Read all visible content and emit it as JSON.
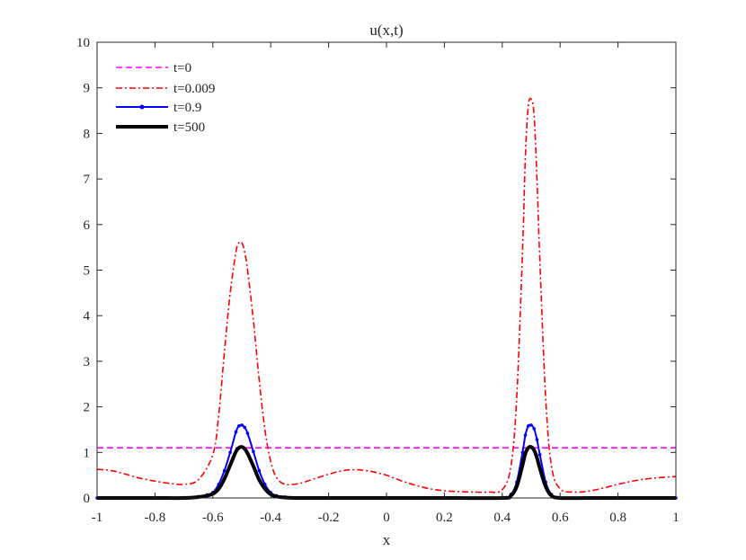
{
  "chart_data": {
    "type": "line",
    "title": "u(x,t)",
    "xlabel": "x",
    "ylabel": "",
    "xlim": [
      -1,
      1
    ],
    "ylim": [
      0,
      10
    ],
    "xticks": [
      -1,
      -0.8,
      -0.6,
      -0.4,
      -0.2,
      0,
      0.2,
      0.4,
      0.6,
      0.8,
      1
    ],
    "xtick_labels": [
      "-1",
      "-0.8",
      "-0.6",
      "-0.4",
      "-0.2",
      "0",
      "0.2",
      "0.4",
      "0.6",
      "0.8",
      "1"
    ],
    "yticks": [
      0,
      1,
      2,
      3,
      4,
      5,
      6,
      7,
      8,
      9,
      10
    ],
    "ytick_labels": [
      "0",
      "1",
      "2",
      "3",
      "4",
      "5",
      "6",
      "7",
      "8",
      "9",
      "10"
    ],
    "grid": false,
    "legend_position": "top-left",
    "series": [
      {
        "name": "t=0",
        "color": "#ff00ff",
        "style": "dashed",
        "x": [
          -1,
          1
        ],
        "y": [
          1.1,
          1.1
        ]
      },
      {
        "name": "t=0.009",
        "color": "#ff0000",
        "style": "dashdot",
        "x": [
          -1.0,
          -0.95,
          -0.9,
          -0.85,
          -0.8,
          -0.75,
          -0.7,
          -0.65,
          -0.6,
          -0.58,
          -0.56,
          -0.54,
          -0.52,
          -0.51,
          -0.5,
          -0.49,
          -0.48,
          -0.46,
          -0.44,
          -0.42,
          -0.4,
          -0.38,
          -0.35,
          -0.3,
          -0.25,
          -0.2,
          -0.15,
          -0.1,
          -0.05,
          -0.03,
          0.0,
          0.05,
          0.1,
          0.15,
          0.2,
          0.25,
          0.3,
          0.35,
          0.4,
          0.43,
          0.45,
          0.47,
          0.48,
          0.49,
          0.5,
          0.51,
          0.52,
          0.53,
          0.55,
          0.57,
          0.6,
          0.65,
          0.7,
          0.75,
          0.8,
          0.85,
          0.9,
          0.95,
          1.0
        ],
        "y": [
          0.63,
          0.6,
          0.52,
          0.43,
          0.37,
          0.32,
          0.3,
          0.4,
          0.95,
          1.8,
          3.2,
          4.5,
          5.4,
          5.6,
          5.6,
          5.4,
          5.0,
          3.9,
          2.6,
          1.5,
          0.8,
          0.45,
          0.3,
          0.32,
          0.42,
          0.52,
          0.6,
          0.62,
          0.58,
          0.55,
          0.5,
          0.38,
          0.28,
          0.2,
          0.16,
          0.14,
          0.13,
          0.13,
          0.18,
          0.7,
          2.2,
          5.4,
          7.5,
          8.6,
          8.75,
          8.4,
          7.0,
          5.2,
          2.2,
          0.7,
          0.2,
          0.13,
          0.15,
          0.22,
          0.3,
          0.37,
          0.42,
          0.45,
          0.47
        ]
      },
      {
        "name": "t=0.9",
        "color": "#0000ff",
        "style": "solid-dot",
        "x": [
          -1.0,
          -0.9,
          -0.8,
          -0.7,
          -0.65,
          -0.62,
          -0.6,
          -0.58,
          -0.56,
          -0.54,
          -0.52,
          -0.51,
          -0.5,
          -0.49,
          -0.48,
          -0.46,
          -0.44,
          -0.42,
          -0.4,
          -0.38,
          -0.35,
          -0.3,
          -0.2,
          0.0,
          0.2,
          0.4,
          0.43,
          0.45,
          0.47,
          0.48,
          0.49,
          0.5,
          0.51,
          0.52,
          0.53,
          0.55,
          0.57,
          0.6,
          0.7,
          0.8,
          1.0
        ],
        "y": [
          0.0,
          0.0,
          0.0,
          0.01,
          0.03,
          0.07,
          0.12,
          0.3,
          0.6,
          1.0,
          1.45,
          1.58,
          1.6,
          1.55,
          1.42,
          1.02,
          0.6,
          0.3,
          0.12,
          0.05,
          0.02,
          0.0,
          0.0,
          0.0,
          0.0,
          0.01,
          0.08,
          0.35,
          1.0,
          1.38,
          1.58,
          1.6,
          1.52,
          1.28,
          0.95,
          0.35,
          0.08,
          0.01,
          0.0,
          0.0,
          0.0
        ]
      },
      {
        "name": "t=500",
        "color": "#000000",
        "style": "solid-thick",
        "x": [
          -1.0,
          -0.9,
          -0.8,
          -0.7,
          -0.65,
          -0.62,
          -0.6,
          -0.58,
          -0.56,
          -0.54,
          -0.52,
          -0.51,
          -0.5,
          -0.49,
          -0.48,
          -0.46,
          -0.44,
          -0.42,
          -0.4,
          -0.38,
          -0.35,
          -0.3,
          -0.2,
          0.0,
          0.2,
          0.4,
          0.43,
          0.45,
          0.47,
          0.48,
          0.49,
          0.5,
          0.51,
          0.52,
          0.53,
          0.55,
          0.57,
          0.6,
          0.7,
          0.8,
          1.0
        ],
        "y": [
          0.0,
          0.0,
          0.0,
          0.0,
          0.02,
          0.05,
          0.09,
          0.2,
          0.42,
          0.72,
          1.02,
          1.1,
          1.12,
          1.08,
          0.98,
          0.7,
          0.4,
          0.2,
          0.08,
          0.03,
          0.01,
          0.0,
          0.0,
          0.0,
          0.0,
          0.0,
          0.05,
          0.25,
          0.72,
          0.98,
          1.1,
          1.12,
          1.05,
          0.88,
          0.65,
          0.25,
          0.05,
          0.0,
          0.0,
          0.0,
          0.0
        ]
      }
    ]
  }
}
